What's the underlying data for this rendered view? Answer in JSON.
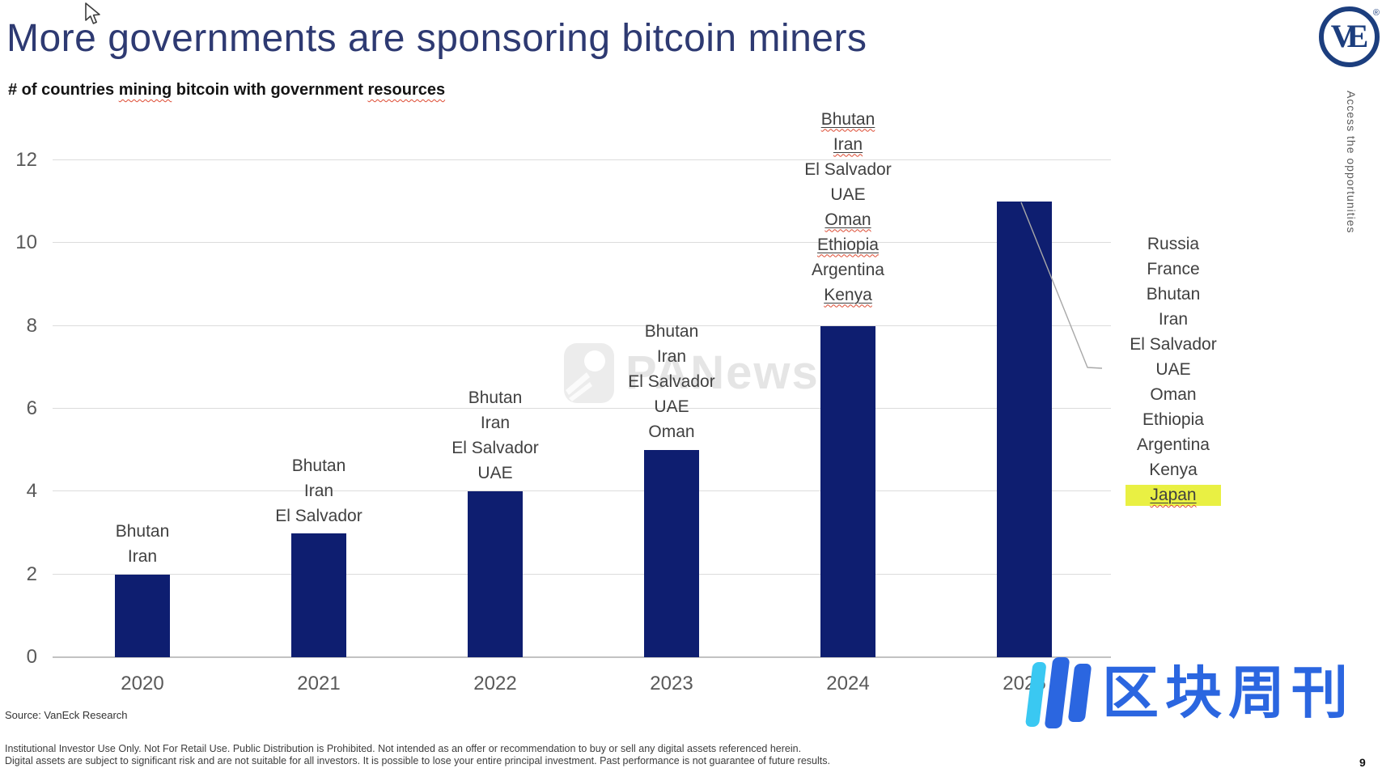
{
  "page": {
    "title": "More governments are sponsoring bitcoin miners",
    "vertical_tagline": "Access the opportunities",
    "logo_text": "VE",
    "logo_registered": "®",
    "source": "Source: VanEck Research",
    "disclaimer_line1": "Institutional Investor Use Only. Not For Retail Use. Public Distribution is Prohibited. Not intended as an offer or recommendation to buy or sell any digital assets referenced herein.",
    "disclaimer_line2": "Digital assets are subject to significant risk and are not suitable for all investors. It is possible to lose your entire principal investment. Past performance is not guarantee of future results.",
    "page_number": "9",
    "watermark_center": "PANews",
    "watermark_bottom_right": "区块周刊"
  },
  "subtitle_parts": [
    {
      "text": "# of countries "
    },
    {
      "text": "mining",
      "squiggle": true
    },
    {
      "text": " bitcoin with government "
    },
    {
      "text": "resources",
      "squiggle": true
    }
  ],
  "chart_data": {
    "type": "bar",
    "title": "# of countries mining bitcoin with government resources",
    "categories": [
      "2020",
      "2021",
      "2022",
      "2023",
      "2024",
      "2025"
    ],
    "values": [
      2,
      3,
      4,
      5,
      8,
      11
    ],
    "xlabel": "",
    "ylabel": "",
    "ylim": [
      0,
      12
    ],
    "yticks": [
      0,
      2,
      4,
      6,
      8,
      10,
      12
    ],
    "grid": true,
    "legend_position": "none",
    "bar_color": "#0e1e70",
    "gridline_color": "#dcdcdc",
    "bar_annotations": [
      {
        "category": "2020",
        "countries": [
          {
            "name": "Bhutan"
          },
          {
            "name": "Iran"
          }
        ]
      },
      {
        "category": "2021",
        "countries": [
          {
            "name": "Bhutan"
          },
          {
            "name": "Iran"
          },
          {
            "name": "El Salvador"
          }
        ]
      },
      {
        "category": "2022",
        "countries": [
          {
            "name": "Bhutan"
          },
          {
            "name": "Iran"
          },
          {
            "name": "El Salvador"
          },
          {
            "name": "UAE"
          }
        ]
      },
      {
        "category": "2023",
        "countries": [
          {
            "name": "Bhutan"
          },
          {
            "name": "Iran"
          },
          {
            "name": "El Salvador"
          },
          {
            "name": "UAE"
          },
          {
            "name": "Oman"
          }
        ]
      },
      {
        "category": "2024",
        "countries": [
          {
            "name": "Bhutan",
            "squiggle": true,
            "underline": true
          },
          {
            "name": "Iran",
            "squiggle": true,
            "underline": true
          },
          {
            "name": "El Salvador"
          },
          {
            "name": "UAE"
          },
          {
            "name": "Oman",
            "squiggle": true,
            "underline": true
          },
          {
            "name": "Ethiopia",
            "squiggle": true,
            "underline": true
          },
          {
            "name": "Argentina"
          },
          {
            "name": "Kenya",
            "squiggle": true,
            "underline": true
          }
        ]
      },
      {
        "category": "2025",
        "countries": []
      }
    ],
    "callout_2025": {
      "countries": [
        {
          "name": "Russia"
        },
        {
          "name": "France"
        },
        {
          "name": "Bhutan"
        },
        {
          "name": "Iran"
        },
        {
          "name": "El Salvador"
        },
        {
          "name": "UAE"
        },
        {
          "name": "Oman"
        },
        {
          "name": "Ethiopia"
        },
        {
          "name": "Argentina"
        },
        {
          "name": "Kenya"
        },
        {
          "name": "Japan",
          "squiggle": true,
          "underline": true,
          "highlighted": true
        }
      ],
      "highlight_color": "#e9f043"
    }
  }
}
